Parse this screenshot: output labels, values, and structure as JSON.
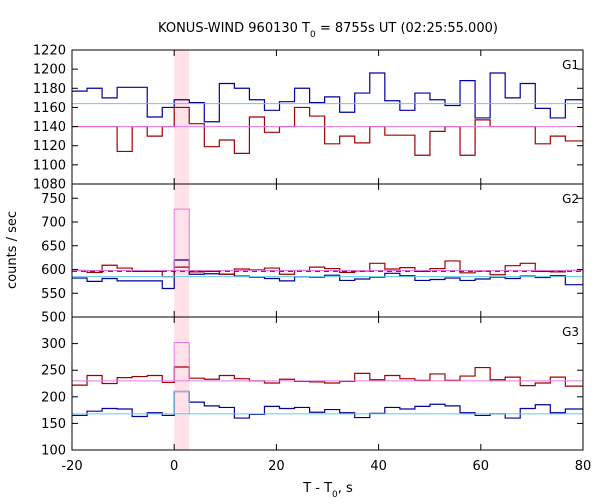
{
  "chart_data": {
    "type": "line",
    "title": {
      "text": "KONUS-WIND 960130 T",
      "sub": "0",
      "rest": " = 8755s UT (02:25:55.000)"
    },
    "xlabel": {
      "text": "T - T",
      "sub": "0",
      "rest": ", s"
    },
    "ylabel": "counts / sec",
    "xlim": [
      -20,
      80
    ],
    "x_ticks": [
      -20,
      0,
      20,
      40,
      60,
      80
    ],
    "x_tick_labels": [
      "-20",
      "0",
      "20",
      "40",
      "60",
      "80"
    ],
    "highlight_band": {
      "x": [
        0,
        2.944
      ],
      "color": "#ffd6de"
    },
    "colors": {
      "blue": "#0000a0",
      "red": "#a00000",
      "cyan": "#66c8e6",
      "pink": "#e678e6",
      "dark_red_dashed": "#a00000"
    },
    "bin_edges": [
      -20.0,
      -17.056,
      -14.112,
      -11.168,
      -8.224,
      -5.28,
      -2.336,
      0.0,
      2.944,
      5.888,
      8.832,
      11.776,
      14.72,
      17.664,
      20.608,
      23.552,
      26.496,
      29.44,
      32.384,
      35.328,
      38.272,
      41.216,
      44.16,
      47.104,
      50.048,
      52.992,
      55.936,
      58.88,
      61.824,
      64.768,
      67.712,
      70.656,
      73.6,
      76.544,
      79.488
    ],
    "panels": [
      {
        "label": "G1",
        "ylim": [
          1080,
          1220
        ],
        "y_ticks": [
          1080,
          1100,
          1120,
          1140,
          1160,
          1180,
          1200,
          1220
        ],
        "series": [
          {
            "color": "blue",
            "values": [
              1177,
              1180,
              1170,
              1181,
              1181,
              1150,
              1160,
              1168,
              1165,
              1145,
              1185,
              1180,
              1168,
              1157,
              1166,
              1180,
              1165,
              1171,
              1155,
              1175,
              1196,
              1167,
              1157,
              1175,
              1168,
              1162,
              1188,
              1149,
              1196,
              1170,
              1185,
              1159,
              1149,
              1168
            ]
          },
          {
            "color": "red",
            "values": [
              1140,
              1140,
              1140,
              1114,
              1140,
              1130,
              1140,
              1160,
              1143,
              1119,
              1126,
              1112,
              1150,
              1134,
              1140,
              1160,
              1151,
              1122,
              1130,
              1123,
              1140,
              1131,
              1131,
              1110,
              1135,
              1140,
              1110,
              1147,
              1140,
              1140,
              1140,
              1122,
              1130,
              1125
            ]
          },
          {
            "color": "cyan",
            "constant": 1164
          },
          {
            "color": "pink",
            "constant": 1140
          }
        ]
      },
      {
        "label": "G2",
        "ylim": [
          500,
          780
        ],
        "y_ticks": [
          500,
          550,
          600,
          650,
          700,
          750
        ],
        "series": [
          {
            "color": "blue",
            "values": [
              582,
              575,
              581,
              576,
              576,
              576,
              560,
              620,
              590,
              591,
              590,
              586,
              584,
              581,
              576,
              585,
              584,
              588,
              577,
              580,
              584,
              592,
              587,
              577,
              579,
              582,
              577,
              580,
              584,
              581,
              586,
              583,
              587,
              568
            ]
          },
          {
            "color": "red",
            "values": [
              598,
              594,
              609,
              603,
              596,
              596,
              585,
              605,
              595,
              596,
              590,
              601,
              599,
              603,
              590,
              598,
              605,
              602,
              594,
              597,
              613,
              601,
              604,
              596,
              602,
              618,
              593,
              597,
              589,
              608,
              613,
              596,
              595,
              598
            ]
          },
          {
            "color": "cyan",
            "constant": 585
          },
          {
            "color": "pink",
            "constant": 598,
            "bins": {
              "from": 7,
              "to": 8,
              "value": 727
            }
          },
          {
            "color": "dark_red_dashed",
            "constant": 596,
            "dashed": true
          }
        ]
      },
      {
        "label": "G3",
        "ylim": [
          100,
          350
        ],
        "y_ticks": [
          100,
          150,
          200,
          250,
          300
        ],
        "series": [
          {
            "color": "blue",
            "values": [
              165,
              173,
              178,
              177,
              163,
              170,
              165,
              210,
              190,
              183,
              180,
              160,
              167,
              182,
              178,
              180,
              171,
              176,
              170,
              161,
              169,
              180,
              177,
              182,
              186,
              183,
              170,
              165,
              168,
              160,
              178,
              185,
              170,
              177
            ]
          },
          {
            "color": "red",
            "values": [
              222,
              240,
              225,
              236,
              238,
              240,
              227,
              256,
              235,
              233,
              240,
              234,
              230,
              226,
              233,
              229,
              228,
              226,
              229,
              244,
              232,
              240,
              234,
              231,
              243,
              231,
              239,
              255,
              232,
              237,
              221,
              226,
              237,
              220
            ]
          },
          {
            "color": "cyan",
            "constant": 168,
            "bins": {
              "from": 7,
              "to": 8,
              "value": 210
            }
          },
          {
            "color": "pink",
            "constant": 230,
            "bins": {
              "from": 7,
              "to": 8,
              "value": 302
            }
          }
        ]
      }
    ]
  }
}
